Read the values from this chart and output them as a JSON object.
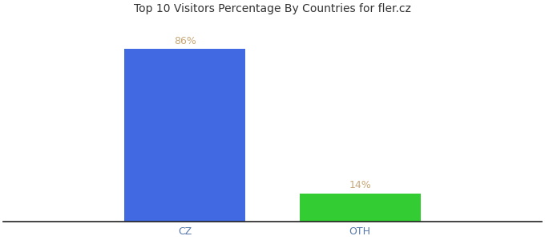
{
  "categories": [
    "CZ",
    "OTH"
  ],
  "values": [
    86,
    14
  ],
  "bar_colors": [
    "#4169e1",
    "#33cc33"
  ],
  "label_color": "#c8a878",
  "tick_color": "#5577aa",
  "title": "Top 10 Visitors Percentage By Countries for fler.cz",
  "title_fontsize": 10,
  "label_fontsize": 9,
  "tick_fontsize": 9,
  "ylim": [
    0,
    100
  ],
  "background_color": "#ffffff",
  "bar_width": 0.18,
  "x_positions": [
    0.37,
    0.63
  ],
  "xlim": [
    0.1,
    0.9
  ],
  "label_texts": [
    "86%",
    "14%"
  ]
}
